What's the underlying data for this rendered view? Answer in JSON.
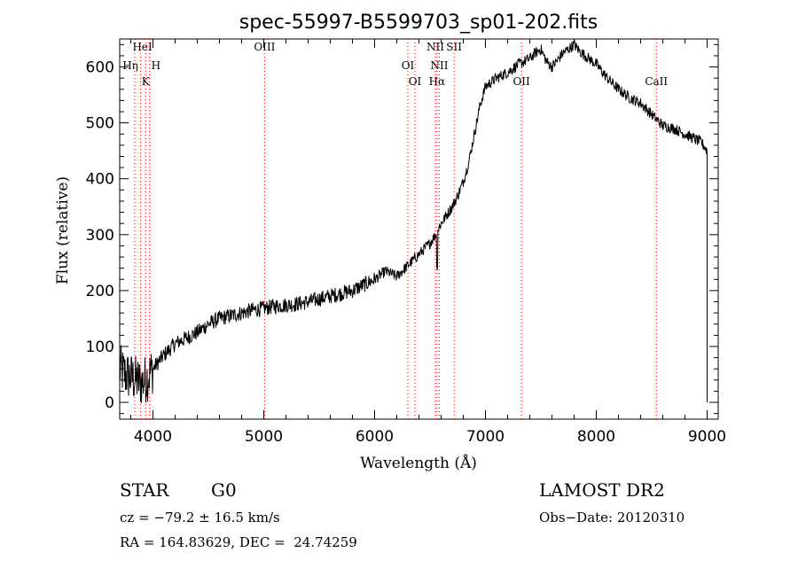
{
  "chart_data": {
    "type": "line",
    "title": "spec-55997-B5599703_sp01-202.fits",
    "xlabel": "Wavelength (Å)",
    "ylabel": "Flux (relative)",
    "xlim": [
      3700,
      9100
    ],
    "ylim": [
      -30,
      650
    ],
    "xticks": [
      4000,
      5000,
      6000,
      7000,
      8000,
      9000
    ],
    "yticks": [
      0,
      100,
      200,
      300,
      400,
      500,
      600
    ],
    "grid": false,
    "line_color": "#000000",
    "marker_color": "#ff0000",
    "series": [
      {
        "x": [
          3700,
          3750,
          3800,
          3850,
          3900,
          3950,
          4000,
          4100,
          4200,
          4300,
          4400,
          4500,
          4600,
          4700,
          4800,
          4900,
          5000,
          5100,
          5200,
          5300,
          5400,
          5500,
          5600,
          5700,
          5800,
          5900,
          6000,
          6100,
          6200,
          6300,
          6400,
          6500,
          6550,
          6600,
          6650,
          6700,
          6750,
          6800,
          6850,
          6900,
          6950,
          7000,
          7100,
          7200,
          7300,
          7400,
          7450,
          7500,
          7550,
          7600,
          7650,
          7700,
          7750,
          7800,
          7850,
          7900,
          8000,
          8100,
          8200,
          8300,
          8400,
          8500,
          8600,
          8700,
          8800,
          8900,
          8950,
          9000
        ],
        "y": [
          60,
          50,
          45,
          40,
          35,
          45,
          60,
          85,
          105,
          115,
          125,
          140,
          150,
          155,
          160,
          165,
          168,
          172,
          174,
          176,
          180,
          185,
          190,
          195,
          200,
          210,
          220,
          235,
          225,
          245,
          265,
          285,
          300,
          320,
          335,
          350,
          370,
          395,
          430,
          480,
          530,
          565,
          580,
          590,
          605,
          615,
          625,
          632,
          610,
          600,
          612,
          625,
          632,
          640,
          628,
          620,
          605,
          580,
          560,
          545,
          535,
          515,
          495,
          490,
          480,
          470,
          465,
          450
        ]
      }
    ],
    "spectral_lines": [
      {
        "label": "HeI",
        "wavelength": 3889
      },
      {
        "label": "Hη",
        "wavelength": 3835
      },
      {
        "label": "H",
        "wavelength": 3969
      },
      {
        "label": "K",
        "wavelength": 3934
      },
      {
        "label": "OIII",
        "wavelength": 5007
      },
      {
        "label": "OI",
        "wavelength": 6364
      },
      {
        "label": "OI",
        "wavelength": 6300
      },
      {
        "label": "NII",
        "wavelength": 6584
      },
      {
        "label": "NII",
        "wavelength": 6548
      },
      {
        "label": "Hα",
        "wavelength": 6563
      },
      {
        "label": "SII",
        "wavelength": 6717
      },
      {
        "label": "OII",
        "wavelength": 7325
      },
      {
        "label": "CaII",
        "wavelength": 8542
      }
    ]
  },
  "info": {
    "object_class": "STAR",
    "subclass": "G0",
    "survey": "LAMOST DR2",
    "redshift": "cz = −79.2 ± 16.5 km/s",
    "obs_date": "Obs−Date: 20120310",
    "coords": "RA = 164.83629, DEC =  24.74259"
  }
}
